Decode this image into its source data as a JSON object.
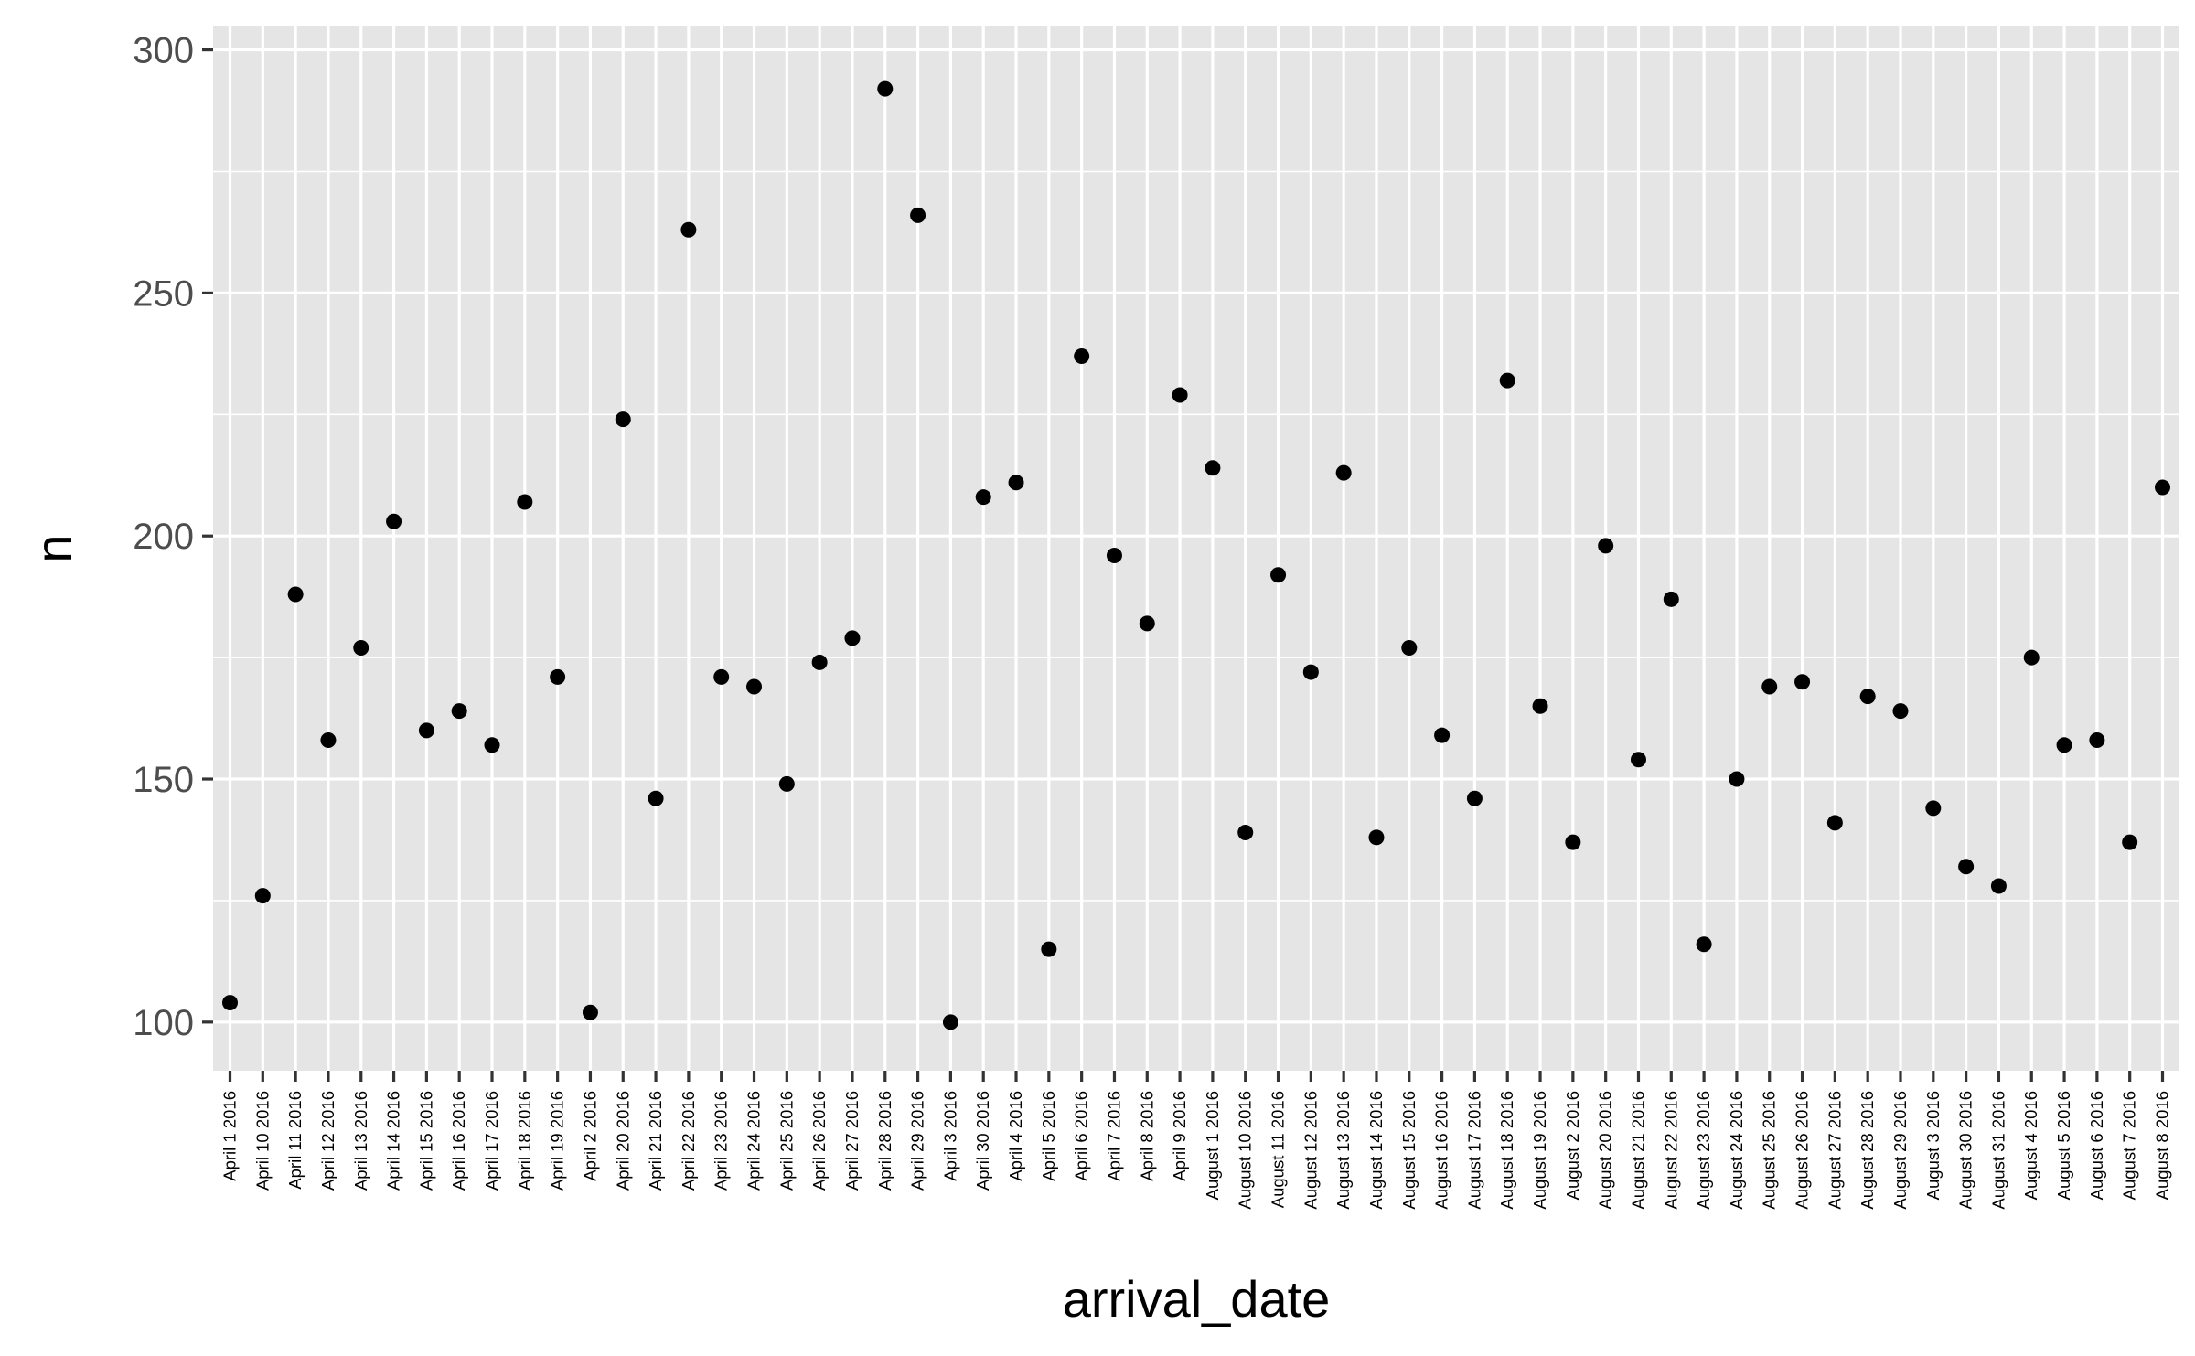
{
  "chart_data": {
    "type": "scatter",
    "xlabel": "arrival_date",
    "ylabel": "n",
    "ylim": [
      90,
      305
    ],
    "yticks": [
      100,
      150,
      200,
      250,
      300
    ],
    "grid": true,
    "legend": "none",
    "colors": {
      "panel": "#e5e5e5",
      "grid": "#ffffff",
      "point": "#000000",
      "tick_text": "#4d4d4d"
    },
    "categories": [
      "April 1 2016",
      "April 10 2016",
      "April 11 2016",
      "April 12 2016",
      "April 13 2016",
      "April 14 2016",
      "April 15 2016",
      "April 16 2016",
      "April 17 2016",
      "April 18 2016",
      "April 19 2016",
      "April 2 2016",
      "April 20 2016",
      "April 21 2016",
      "April 22 2016",
      "April 23 2016",
      "April 24 2016",
      "April 25 2016",
      "April 26 2016",
      "April 27 2016",
      "April 28 2016",
      "April 29 2016",
      "April 3 2016",
      "April 30 2016",
      "April 4 2016",
      "April 5 2016",
      "April 6 2016",
      "April 7 2016",
      "April 8 2016",
      "April 9 2016",
      "August 1 2016",
      "August 10 2016",
      "August 11 2016",
      "August 12 2016",
      "August 13 2016",
      "August 14 2016",
      "August 15 2016",
      "August 16 2016",
      "August 17 2016",
      "August 18 2016",
      "August 19 2016",
      "August 2 2016",
      "August 20 2016",
      "August 21 2016",
      "August 22 2016",
      "August 23 2016",
      "August 24 2016",
      "August 25 2016",
      "August 26 2016",
      "August 27 2016",
      "August 28 2016",
      "August 29 2016",
      "August 3 2016",
      "August 30 2016",
      "August 31 2016",
      "August 4 2016",
      "August 5 2016",
      "August 6 2016",
      "August 7 2016",
      "August 8 2016"
    ],
    "values": [
      104,
      126,
      188,
      158,
      177,
      203,
      160,
      164,
      157,
      207,
      171,
      102,
      224,
      146,
      263,
      171,
      169,
      149,
      174,
      179,
      292,
      266,
      100,
      208,
      211,
      115,
      237,
      196,
      182,
      229,
      214,
      139,
      192,
      172,
      213,
      138,
      177,
      159,
      146,
      232,
      165,
      137,
      198,
      154,
      187,
      116,
      150,
      169,
      170,
      141,
      167,
      164,
      144,
      132,
      128,
      175,
      157,
      158,
      137,
      210
    ]
  }
}
